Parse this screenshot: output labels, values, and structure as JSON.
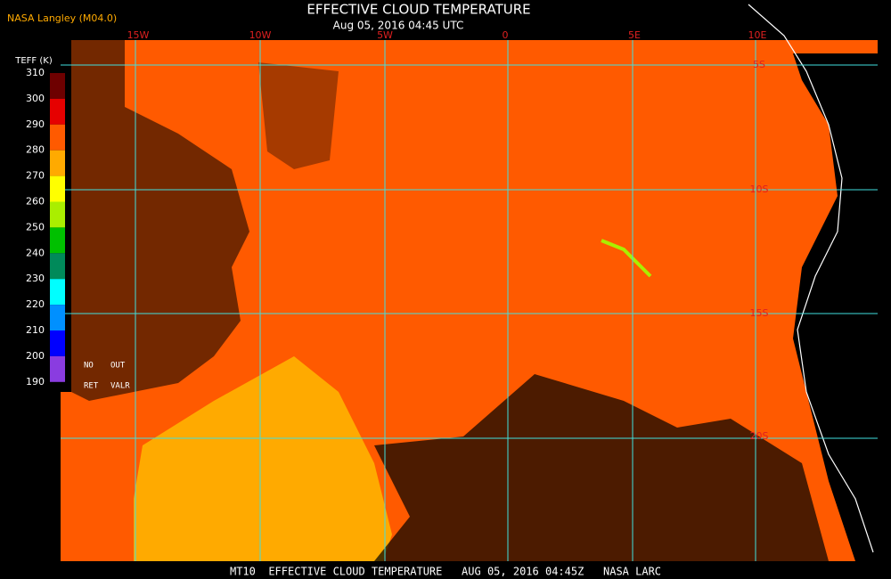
{
  "header": {
    "credit": "NASA Langley (M04.0)",
    "title": "EFFECTIVE CLOUD TEMPERATURE",
    "subtitle": "Aug 05, 2016 04:45 UTC"
  },
  "legend": {
    "title": "TEFF (K)",
    "ticks": [
      310,
      300,
      290,
      280,
      270,
      260,
      250,
      240,
      230,
      220,
      210,
      200,
      190
    ],
    "colors": [
      "#6e0000",
      "#e60000",
      "#ff5a00",
      "#ffaa00",
      "#ffff00",
      "#aaee00",
      "#00c000",
      "#008a5a",
      "#00ffff",
      "#0090ff",
      "#0000ff",
      "#8a3ce0"
    ],
    "notes": [
      "NO",
      "OUT",
      "RET",
      "VALR"
    ]
  },
  "map": {
    "lon_labels": [
      "15W",
      "10W",
      "5W",
      "0",
      "5E",
      "10E"
    ],
    "lat_labels": [
      "5S",
      "10S",
      "15S",
      "20S"
    ]
  },
  "footer": "MT10  EFFECTIVE CLOUD TEMPERATURE   AUG 05, 2016 04:45Z   NASA LARC"
}
